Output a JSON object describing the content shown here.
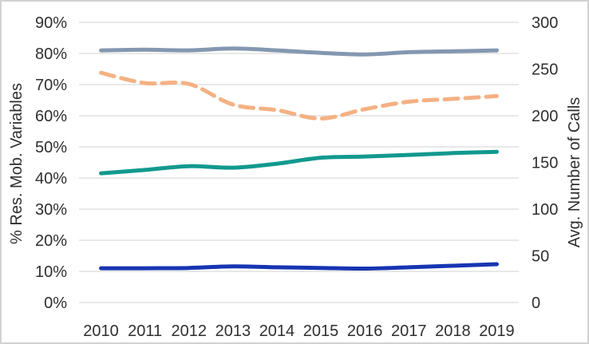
{
  "frame": {
    "background": "#ffffff",
    "border_color": "#d2d2d2"
  },
  "chart_data": {
    "type": "line",
    "title": "",
    "x_categories": [
      "2010",
      "2011",
      "2012",
      "2013",
      "2014",
      "2015",
      "2016",
      "2017",
      "2018",
      "2019"
    ],
    "left_axis": {
      "label": "% Res. Mob. Variables",
      "min": 0,
      "max": 90,
      "tick_step": 10,
      "tick_labels": [
        "0%",
        "10%",
        "20%",
        "30%",
        "40%",
        "50%",
        "60%",
        "70%",
        "80%",
        "90%"
      ]
    },
    "right_axis": {
      "label": "Avg. Number of Calls",
      "min": 0,
      "max": 300,
      "tick_step": 50,
      "tick_labels": [
        "0",
        "50",
        "100",
        "150",
        "200",
        "250",
        "300"
      ]
    },
    "grid": {
      "horizontal": true,
      "vertical": false,
      "color": "#d9d9d9"
    },
    "legend_position": "none",
    "text_color": "#2f2f2f",
    "series": [
      {
        "name": "slate-gray solid line (left axis, %)",
        "axis": "left",
        "line_style": "solid",
        "color": "#8497b0",
        "values": [
          81,
          81.2,
          81,
          81.6,
          81,
          80.2,
          79.7,
          80.4,
          80.7,
          81
        ]
      },
      {
        "name": "orange dashed line (right axis, calls)",
        "axis": "right",
        "line_style": "dashed",
        "color": "#f4b183",
        "values": [
          246,
          235,
          234,
          212,
          206,
          197,
          207,
          215,
          218,
          221
        ]
      },
      {
        "name": "teal solid line (left axis, %)",
        "axis": "left",
        "line_style": "solid",
        "color": "#12998e",
        "values": [
          41.5,
          42.6,
          43.8,
          43.3,
          44.6,
          46.5,
          46.9,
          47.4,
          48,
          48.4
        ]
      },
      {
        "name": "navy solid line (left axis, %)",
        "axis": "left",
        "line_style": "solid",
        "color": "#1735b2",
        "values": [
          11,
          11,
          11.1,
          11.6,
          11.3,
          11.1,
          10.9,
          11.3,
          11.8,
          12.3
        ]
      }
    ]
  }
}
